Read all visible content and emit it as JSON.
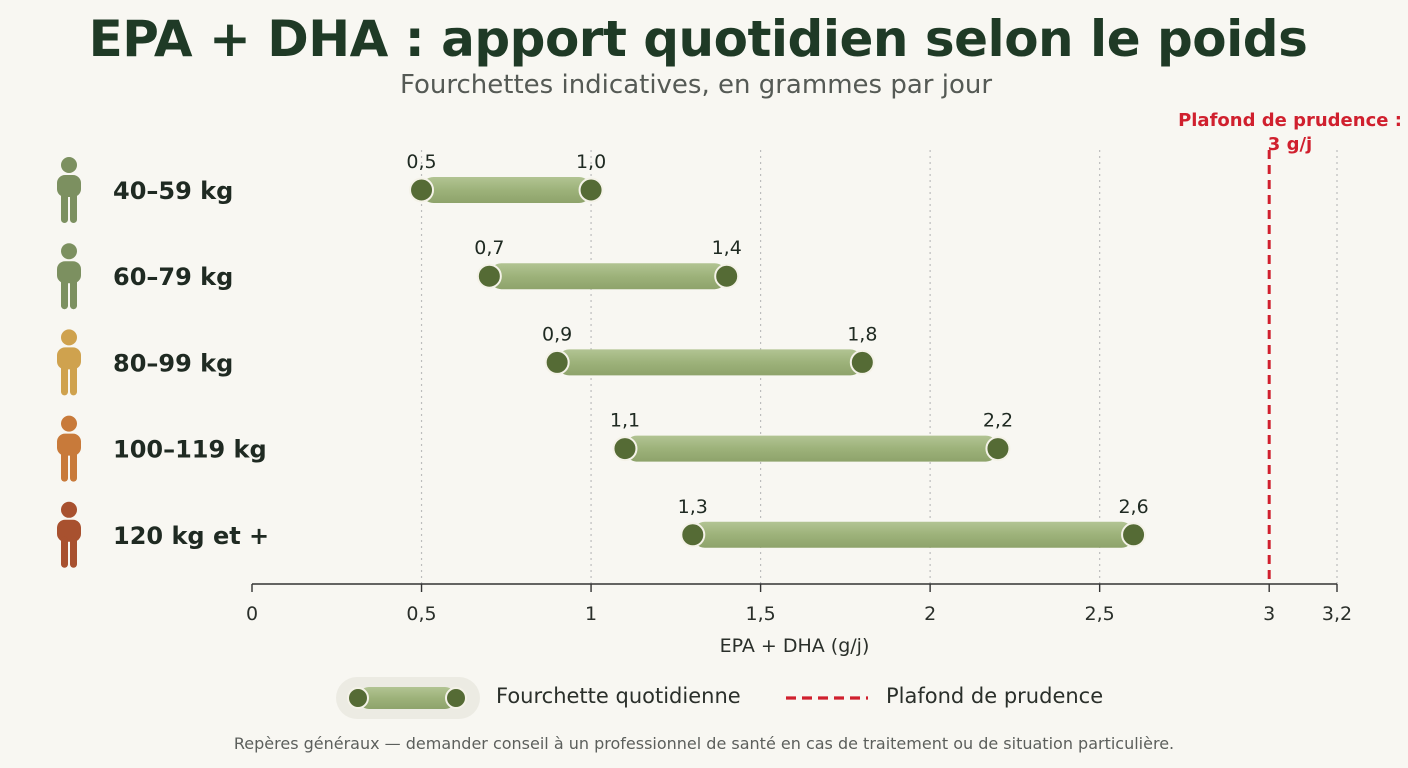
{
  "title": "EPA + DHA : apport quotidien selon le poids",
  "subtitle": "Fourchettes indicatives, en grammes par jour",
  "footnote": "Repères généraux — demander conseil à un professionnel de santé en cas de traitement ou de situation particulière.",
  "legend": {
    "range_label": "Fourchette quotidienne",
    "cap_label": "Plafond de prudence"
  },
  "colors": {
    "bar": "#9db27a",
    "dot": "#556b35",
    "cap": "#d0202e",
    "axis": "#333333",
    "grid": "#bdbdbd"
  },
  "chart_data": {
    "type": "range-bar",
    "xlabel": "EPA + DHA (g/j)",
    "xlim": [
      0,
      3.2
    ],
    "xticks": [
      0,
      0.5,
      1,
      1.5,
      2,
      2.5,
      3,
      3.2
    ],
    "xtick_labels": [
      "0",
      "0,5",
      "1",
      "1,5",
      "2",
      "2,5",
      "3",
      "3,2"
    ],
    "grid": true,
    "legend_position": "bottom",
    "categories": [
      "40–59 kg",
      "60–79 kg",
      "80–99 kg",
      "100–119 kg",
      "120 kg et +"
    ],
    "icon_colors": [
      "#7c9060",
      "#7c9060",
      "#cfa24e",
      "#c87a3a",
      "#a8512f"
    ],
    "low": [
      0.5,
      0.7,
      0.9,
      1.1,
      1.3
    ],
    "high": [
      1.0,
      1.4,
      1.8,
      2.2,
      2.6
    ],
    "low_labels": [
      "0,5",
      "0,7",
      "0,9",
      "1,1",
      "1,3"
    ],
    "high_labels": [
      "1,0",
      "1,4",
      "1,8",
      "2,2",
      "2,6"
    ],
    "reference_line": {
      "value": 3,
      "label_line1": "Plafond de prudence :",
      "label_line2": "3 g/j"
    }
  }
}
